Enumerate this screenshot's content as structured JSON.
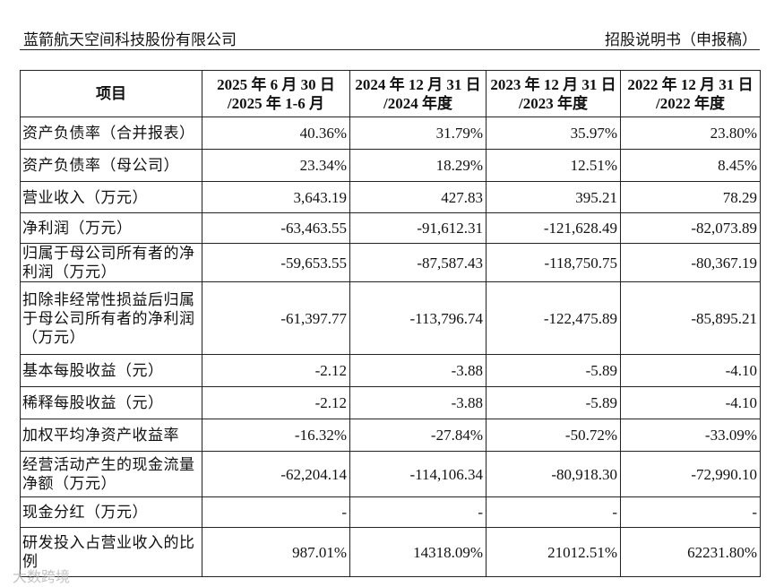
{
  "header": {
    "left": "蓝箭航天空间科技股份有限公司",
    "right": "招股说明书（申报稿）"
  },
  "table": {
    "columns": [
      [
        "项目"
      ],
      [
        "2025 年 6 月 30 日",
        "/2025 年 1-6 月"
      ],
      [
        "2024 年 12 月 31 日",
        "/2024 年度"
      ],
      [
        "2023 年 12 月 31 日",
        "/2023 年度"
      ],
      [
        "2022 年 12 月 31 日",
        "/2022 年度"
      ]
    ],
    "rows": [
      [
        "资产负债率（合并报表）",
        "40.36%",
        "31.79%",
        "35.97%",
        "23.80%"
      ],
      [
        "资产负债率（母公司）",
        "23.34%",
        "18.29%",
        "12.51%",
        "8.45%"
      ],
      [
        "营业收入（万元）",
        "3,643.19",
        "427.83",
        "395.21",
        "78.29"
      ],
      [
        "净利润（万元）",
        "-63,463.55",
        "-91,612.31",
        "-121,628.49",
        "-82,073.89"
      ],
      [
        "归属于母公司所有者的净利润（万元）",
        "-59,653.55",
        "-87,587.43",
        "-118,750.75",
        "-80,367.19"
      ],
      [
        "扣除非经常性损益后归属于母公司所有者的净利润（万元）",
        "-61,397.77",
        "-113,796.74",
        "-122,475.89",
        "-85,895.21"
      ],
      [
        "基本每股收益（元）",
        "-2.12",
        "-3.88",
        "-5.89",
        "-4.10"
      ],
      [
        "稀释每股收益（元）",
        "-2.12",
        "-3.88",
        "-5.89",
        "-4.10"
      ],
      [
        "加权平均净资产收益率",
        "-16.32%",
        "-27.84%",
        "-50.72%",
        "-33.09%"
      ],
      [
        "经营活动产生的现金流量净额（万元）",
        "-62,204.14",
        "-114,106.34",
        "-80,918.30",
        "-72,990.10"
      ],
      [
        "现金分红（万元）",
        "-",
        "-",
        "-",
        "-"
      ],
      [
        "研发投入占营业收入的比例",
        "987.01%",
        "14318.09%",
        "21012.51%",
        "62231.80%"
      ]
    ]
  },
  "watermark": "大数跨境"
}
